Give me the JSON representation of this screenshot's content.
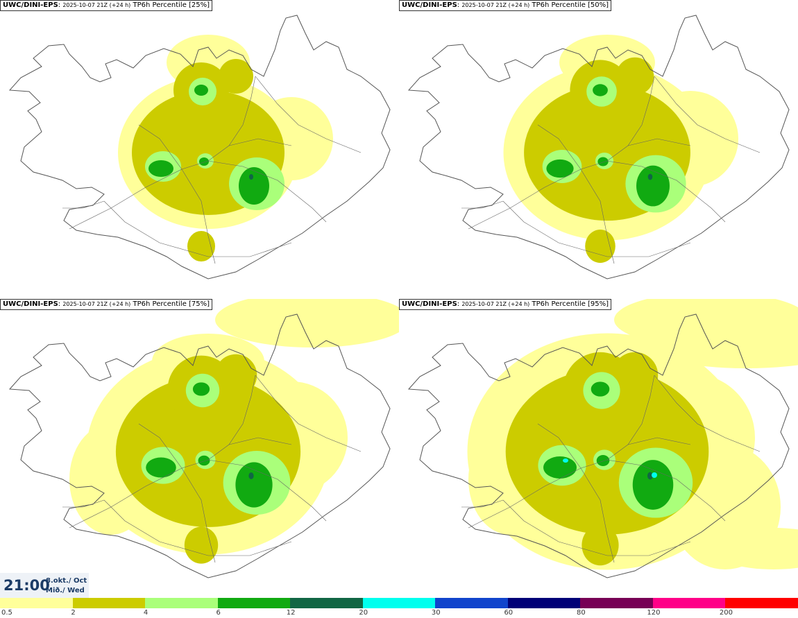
{
  "panels": [
    {
      "source": "UWC/DINI-EPS",
      "run": "2025-10-07 21Z (+24 h)",
      "field": "TP6h Percentile [25%]",
      "percentile": 25
    },
    {
      "source": "UWC/DINI-EPS",
      "run": "2025-10-07 21Z (+24 h)",
      "field": "TP6h Percentile [50%]",
      "percentile": 50
    },
    {
      "source": "UWC/DINI-EPS",
      "run": "2025-10-07 21Z (+24 h)",
      "field": "TP6h Percentile [75%]",
      "percentile": 75
    },
    {
      "source": "UWC/DINI-EPS",
      "run": "2025-10-07 21Z (+24 h)",
      "field": "TP6h Percentile [95%]",
      "percentile": 95
    }
  ],
  "valid_time": {
    "time": "21:00",
    "date_line1": "8.okt./ Oct",
    "date_line2": "Mið./ Wed"
  },
  "legend": {
    "ticks": [
      "0.5",
      "2",
      "4",
      "6",
      "12",
      "20",
      "30",
      "60",
      "80",
      "120",
      "200"
    ],
    "colors": [
      "#ffff9a",
      "#cccc00",
      "#aaff7a",
      "#11aa11",
      "#116644",
      "#00ffee",
      "#1144cc",
      "#000077",
      "#770055",
      "#ff0088",
      "#ff0000"
    ]
  },
  "colors": {
    "land": "#ffffff",
    "coast": "#555555",
    "title_border": "#333333",
    "time_text": "#1b3b66",
    "time_box": "#eef2f7"
  }
}
